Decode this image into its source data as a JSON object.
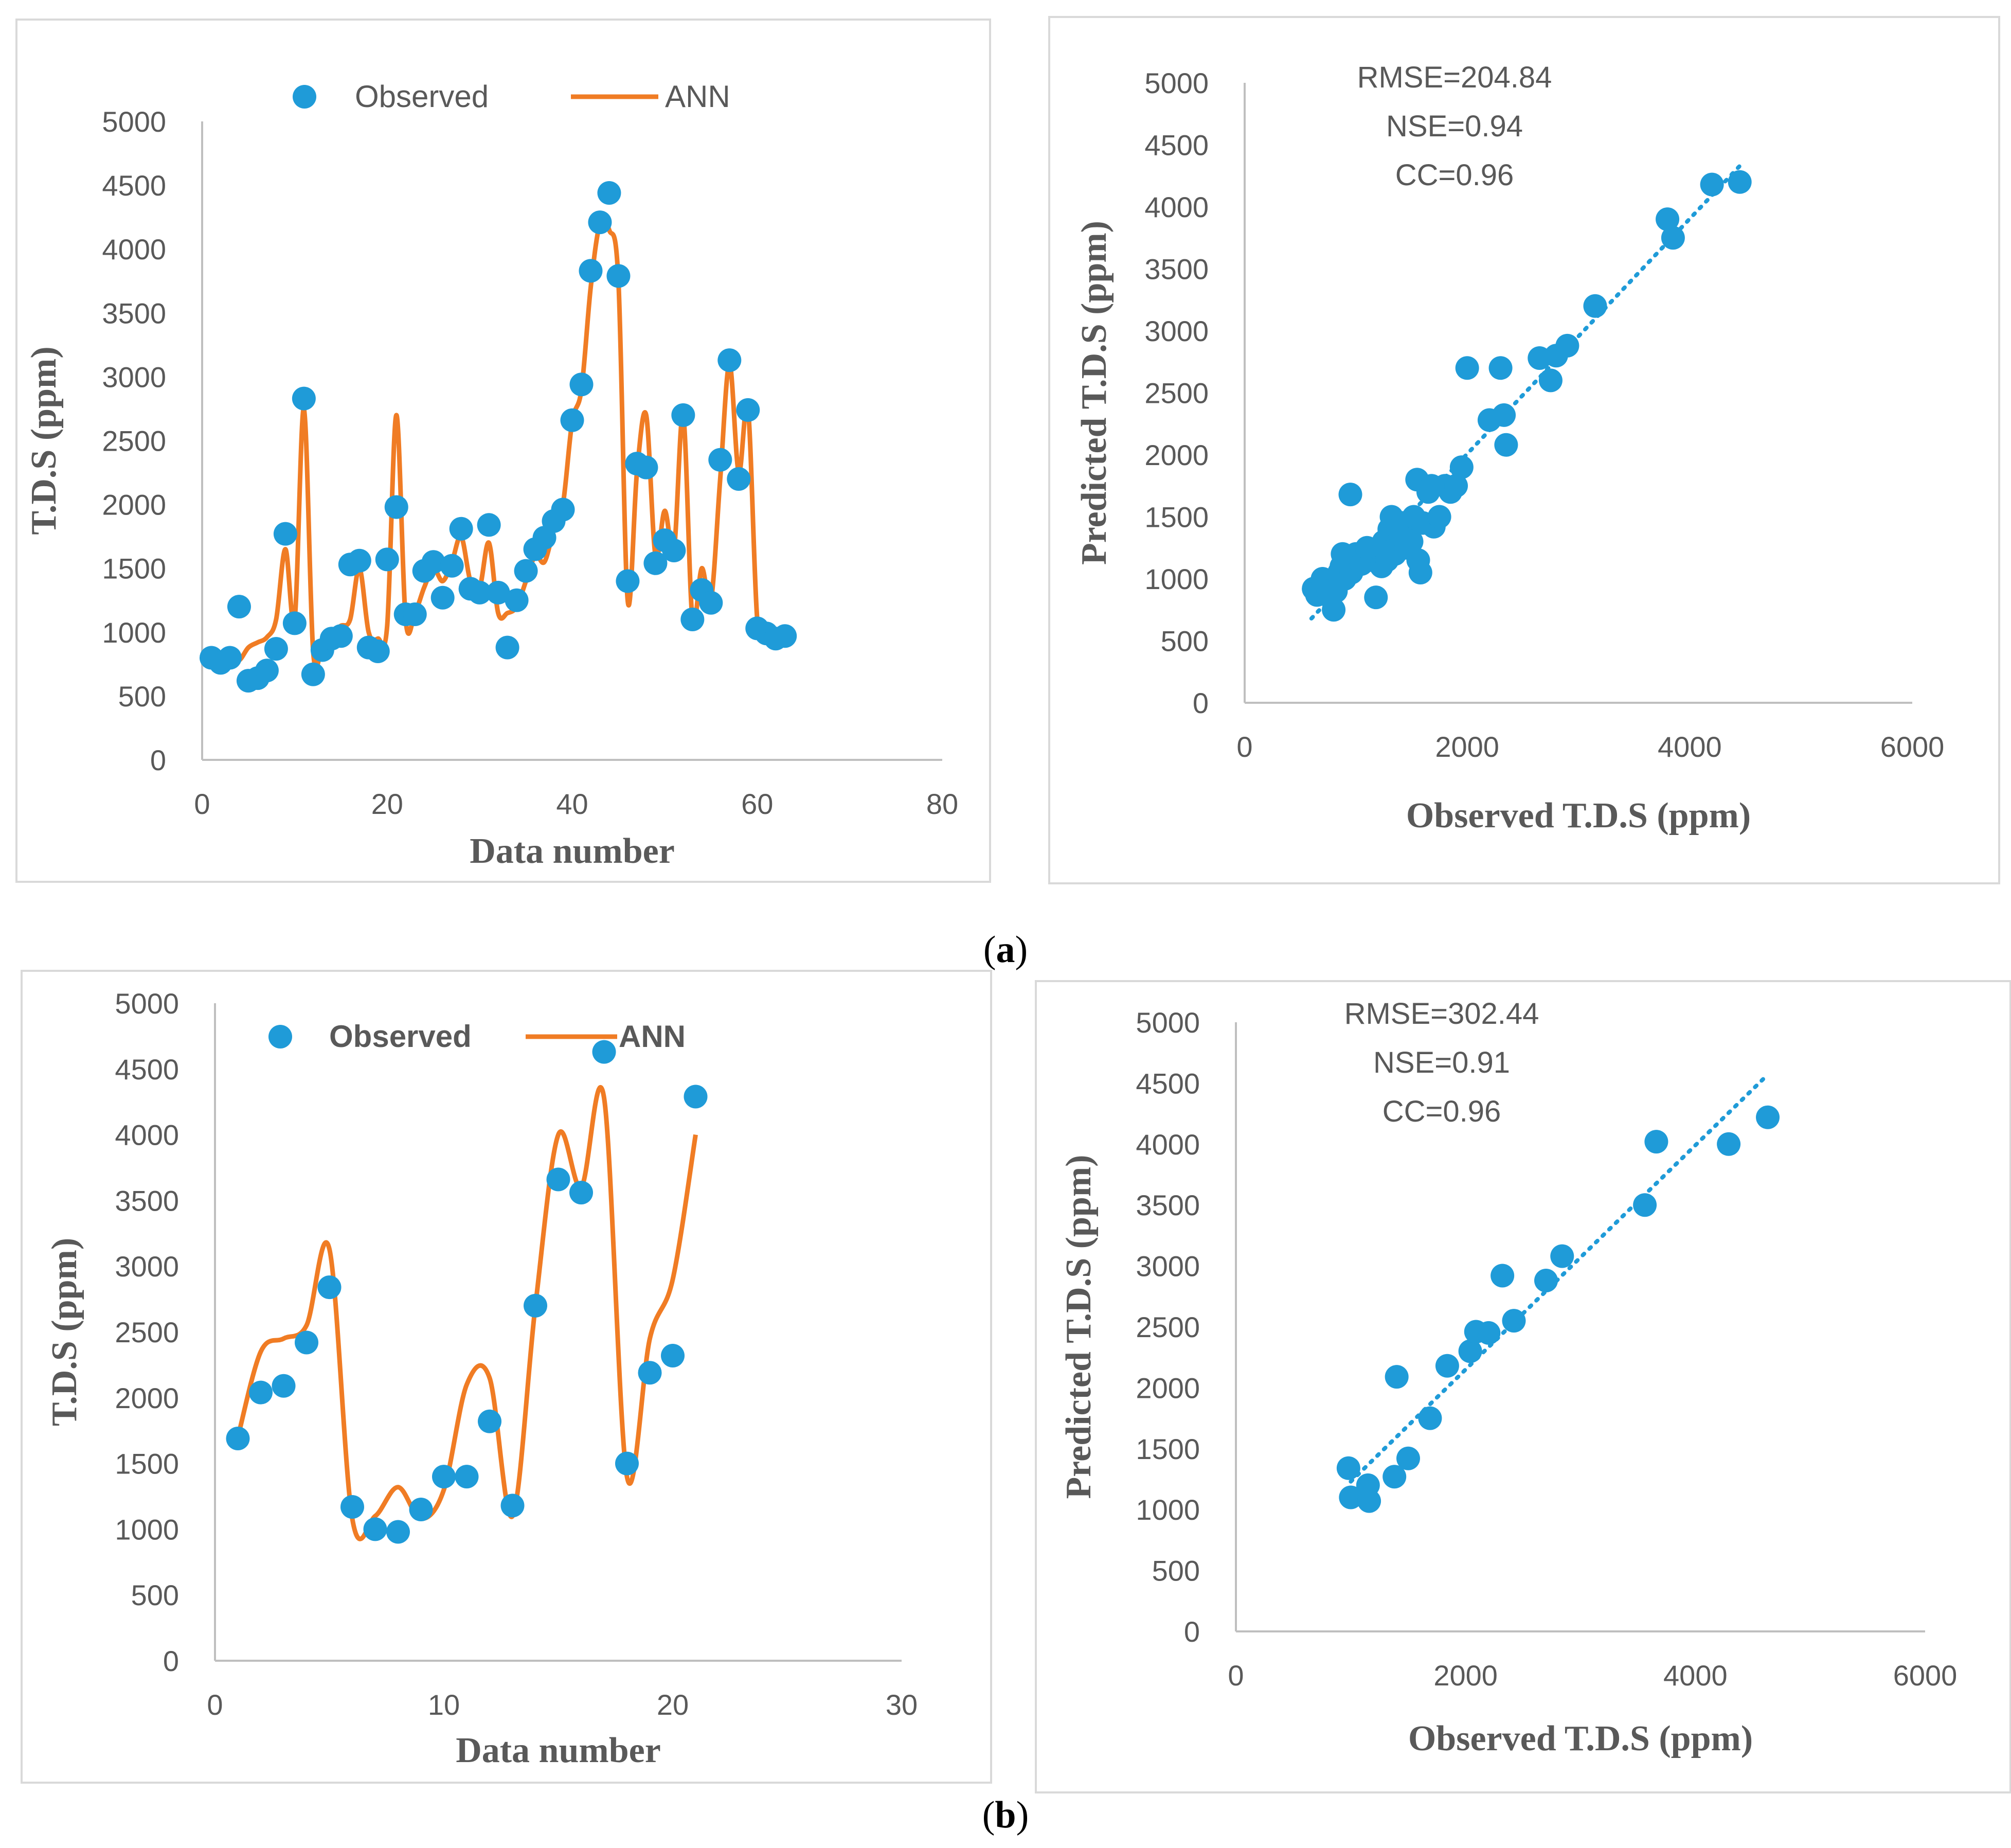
{
  "colors": {
    "observed": "#1F9BD8",
    "ann": "#F07C24",
    "axis": "#BFBFBF",
    "text": "#595959",
    "frame": "#D9D9D9"
  },
  "panels": {
    "a": "(a)",
    "b": "(b)"
  },
  "chart_data": [
    {
      "id": "a-series",
      "type": "line",
      "legend": {
        "observed": "Observed",
        "ann": "ANN",
        "placement": "top"
      },
      "xlabel": "Data number",
      "ylabel": "T.D.S  (ppm)",
      "xlim": [
        0,
        80
      ],
      "ylim": [
        0,
        5000
      ],
      "xticks": [
        0,
        20,
        40,
        60,
        80
      ],
      "yticks": [
        0,
        500,
        1000,
        1500,
        2000,
        2500,
        3000,
        3500,
        4000,
        4500,
        5000
      ],
      "observed": [
        800,
        760,
        800,
        1200,
        620,
        640,
        700,
        870,
        1770,
        1070,
        2830,
        670,
        860,
        950,
        970,
        1530,
        1560,
        880,
        850,
        1570,
        1980,
        1140,
        1140,
        1480,
        1550,
        1270,
        1520,
        1810,
        1340,
        1310,
        1840,
        1310,
        880,
        1250,
        1480,
        1650,
        1740,
        1870,
        1960,
        2660,
        2940,
        3830,
        4210,
        4440,
        3790,
        1400,
        2320,
        2290,
        1540,
        1720,
        1640,
        2700,
        1100,
        1330,
        1230,
        2350,
        3130,
        2200,
        2740,
        1030,
        990,
        950,
        970
      ],
      "ann": [
        820,
        780,
        800,
        780,
        880,
        920,
        960,
        1100,
        1650,
        1100,
        2750,
        850,
        900,
        1000,
        1050,
        1100,
        1500,
        1000,
        950,
        1050,
        2700,
        1100,
        1150,
        1350,
        1500,
        1400,
        1550,
        1750,
        1400,
        1350,
        1700,
        1150,
        1150,
        1200,
        1400,
        1600,
        1550,
        1800,
        2000,
        2650,
        2900,
        3700,
        4200,
        4150,
        3750,
        1250,
        2250,
        2700,
        1600,
        1950,
        1650,
        2700,
        1100,
        1500,
        1250,
        2200,
        3100,
        2250,
        2750,
        1100,
        1000,
        950,
        970
      ]
    },
    {
      "id": "a-scatter",
      "type": "scatter",
      "annotations": [
        "RMSE=204.84",
        "NSE=0.94",
        "CC=0.96"
      ],
      "xlabel": "Observed  T.D.S (ppm)",
      "ylabel": "Predicted  T.D.S (ppm)",
      "xlim": [
        0,
        6000
      ],
      "ylim": [
        0,
        5000
      ],
      "xticks": [
        0,
        2000,
        4000,
        6000
      ],
      "yticks": [
        0,
        500,
        1000,
        1500,
        2000,
        2500,
        3000,
        3500,
        4000,
        4500,
        5000
      ],
      "points": [
        [
          620,
          920
        ],
        [
          650,
          870
        ],
        [
          700,
          980
        ],
        [
          700,
          1000
        ],
        [
          750,
          900
        ],
        [
          800,
          750
        ],
        [
          820,
          900
        ],
        [
          850,
          1050
        ],
        [
          870,
          1100
        ],
        [
          880,
          1200
        ],
        [
          900,
          1000
        ],
        [
          950,
          1680
        ],
        [
          960,
          1050
        ],
        [
          980,
          1100
        ],
        [
          1000,
          1200
        ],
        [
          1050,
          1120
        ],
        [
          1100,
          1250
        ],
        [
          1150,
          1150
        ],
        [
          1180,
          850
        ],
        [
          1200,
          1250
        ],
        [
          1230,
          1100
        ],
        [
          1250,
          1300
        ],
        [
          1280,
          1150
        ],
        [
          1300,
          1400
        ],
        [
          1320,
          1500
        ],
        [
          1350,
          1200
        ],
        [
          1380,
          1300
        ],
        [
          1400,
          1350
        ],
        [
          1420,
          1450
        ],
        [
          1450,
          1250
        ],
        [
          1480,
          1400
        ],
        [
          1500,
          1300
        ],
        [
          1520,
          1500
        ],
        [
          1550,
          1800
        ],
        [
          1560,
          1150
        ],
        [
          1580,
          1050
        ],
        [
          1600,
          1450
        ],
        [
          1650,
          1700
        ],
        [
          1680,
          1750
        ],
        [
          1700,
          1420
        ],
        [
          1750,
          1500
        ],
        [
          1800,
          1750
        ],
        [
          1850,
          1700
        ],
        [
          1900,
          1750
        ],
        [
          1950,
          1900
        ],
        [
          2000,
          2700
        ],
        [
          2200,
          2280
        ],
        [
          2300,
          2700
        ],
        [
          2330,
          2320
        ],
        [
          2350,
          2080
        ],
        [
          2650,
          2780
        ],
        [
          2750,
          2600
        ],
        [
          2800,
          2800
        ],
        [
          2900,
          2880
        ],
        [
          3150,
          3200
        ],
        [
          3800,
          3900
        ],
        [
          3850,
          3750
        ],
        [
          4200,
          4180
        ],
        [
          4450,
          4200
        ]
      ],
      "trendline": [
        [
          600,
          680
        ],
        [
          4450,
          4330
        ]
      ]
    },
    {
      "id": "b-series",
      "type": "line",
      "legend": {
        "observed": "Observed",
        "ann": "ANN",
        "placement": "top"
      },
      "xlabel": "Data number",
      "ylabel": "T.D.S (ppm)",
      "xlim": [
        0,
        30
      ],
      "ylim": [
        0,
        5000
      ],
      "xticks": [
        0,
        10,
        20,
        30
      ],
      "yticks": [
        0,
        500,
        1000,
        1500,
        2000,
        2500,
        3000,
        3500,
        4000,
        4500,
        5000
      ],
      "observed": [
        1690,
        2040,
        2090,
        2420,
        2840,
        1170,
        1000,
        980,
        1150,
        1400,
        1400,
        1820,
        1180,
        2700,
        3660,
        3560,
        4630,
        1500,
        2190,
        2320,
        4290
      ],
      "ann": [
        1700,
        2350,
        2450,
        2550,
        3130,
        1080,
        1100,
        1320,
        1080,
        1300,
        2100,
        2150,
        1100,
        2700,
        4000,
        3600,
        4280,
        1400,
        2450,
        2900,
        4000
      ]
    },
    {
      "id": "b-scatter",
      "type": "scatter",
      "annotations": [
        "RMSE=302.44",
        "NSE=0.91",
        "CC=0.96"
      ],
      "xlabel": "Observed T.D.S (ppm)",
      "ylabel": "Predicted  T.D.S (ppm)",
      "xlim": [
        0,
        6000
      ],
      "ylim": [
        0,
        5000
      ],
      "xticks": [
        0,
        2000,
        4000,
        6000
      ],
      "yticks": [
        0,
        500,
        1000,
        1500,
        2000,
        2500,
        3000,
        3500,
        4000,
        4500,
        5000
      ],
      "points": [
        [
          980,
          1340
        ],
        [
          1000,
          1100
        ],
        [
          1150,
          1200
        ],
        [
          1160,
          1070
        ],
        [
          1380,
          1270
        ],
        [
          1400,
          2090
        ],
        [
          1500,
          1420
        ],
        [
          1690,
          1750
        ],
        [
          1840,
          2180
        ],
        [
          2040,
          2300
        ],
        [
          2090,
          2460
        ],
        [
          2200,
          2450
        ],
        [
          2420,
          2550
        ],
        [
          2320,
          2920
        ],
        [
          2700,
          2880
        ],
        [
          2840,
          3080
        ],
        [
          3560,
          3500
        ],
        [
          3660,
          4020
        ],
        [
          4290,
          4000
        ],
        [
          4630,
          4220
        ]
      ],
      "trendline": [
        [
          1000,
          1230
        ],
        [
          4630,
          4570
        ]
      ]
    }
  ]
}
